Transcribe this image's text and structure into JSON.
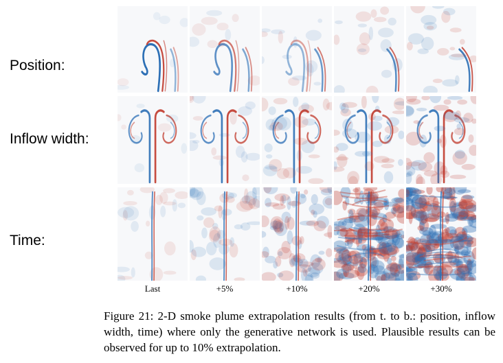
{
  "figure": {
    "row_labels": [
      "Position:",
      "Inflow width:",
      "Time:"
    ],
    "column_labels": [
      "Last",
      "+5%",
      "+10%",
      "+20%",
      "+30%"
    ],
    "caption": "Figure 21: 2-D smoke plume extrapolation results (from t. to b.: position, inflow width, time) where only the generative network is used. Plausible results can be observed for up to 10% extrapolation."
  },
  "colors": {
    "positive": "#c0392b",
    "negative": "#2c6fb5",
    "background": "#f7f8fa"
  }
}
